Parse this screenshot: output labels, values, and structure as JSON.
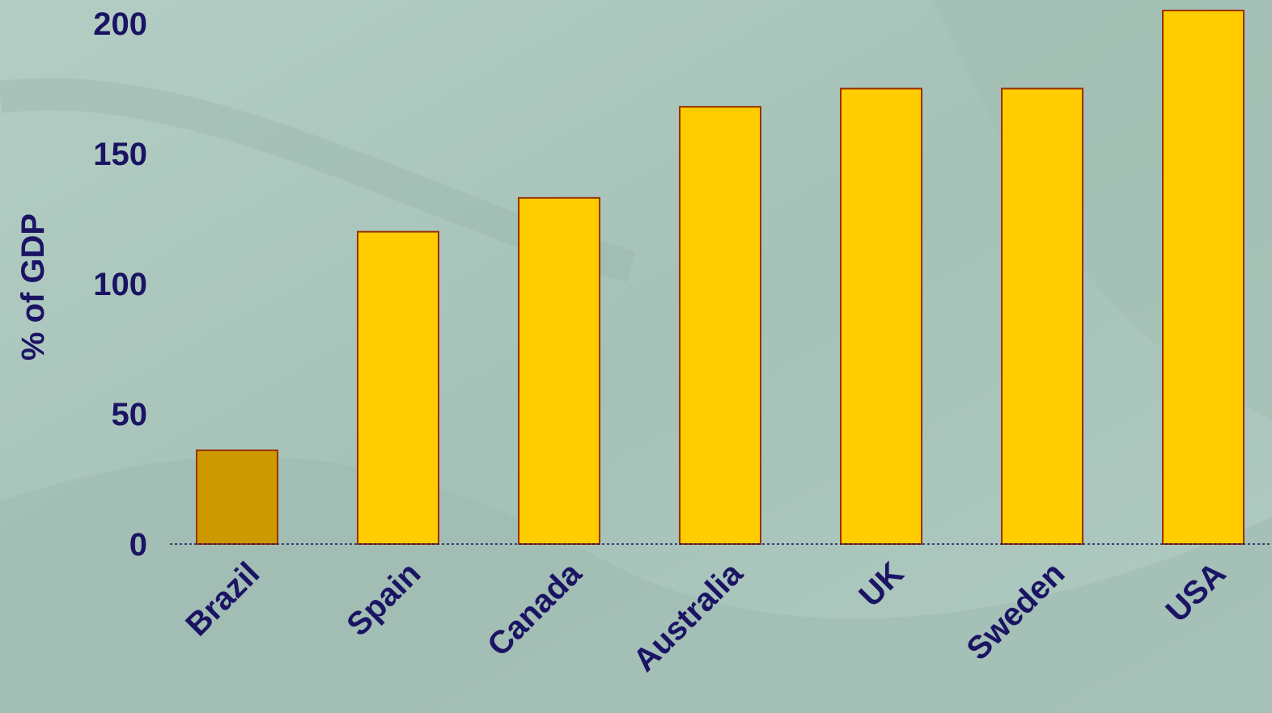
{
  "chart_data": {
    "type": "bar",
    "title": "",
    "xlabel": "",
    "ylabel": "% of GDP",
    "categories": [
      "Brazil",
      "Spain",
      "Canada",
      "Australia",
      "UK",
      "Sweden",
      "USA"
    ],
    "values": [
      36,
      120,
      133,
      168,
      175,
      175,
      205
    ],
    "ylim": [
      0,
      205
    ],
    "yticks": [
      0,
      50,
      100,
      150,
      200
    ],
    "grid": false,
    "legend": "none",
    "colors": {
      "bar": "#ffcc00",
      "highlight_bar": "#cc9900",
      "bar_outline": "#993300",
      "text": "#1b1464",
      "baseline": "#1b1464",
      "background": "#a9c4bb"
    },
    "highlight_index": 0
  }
}
